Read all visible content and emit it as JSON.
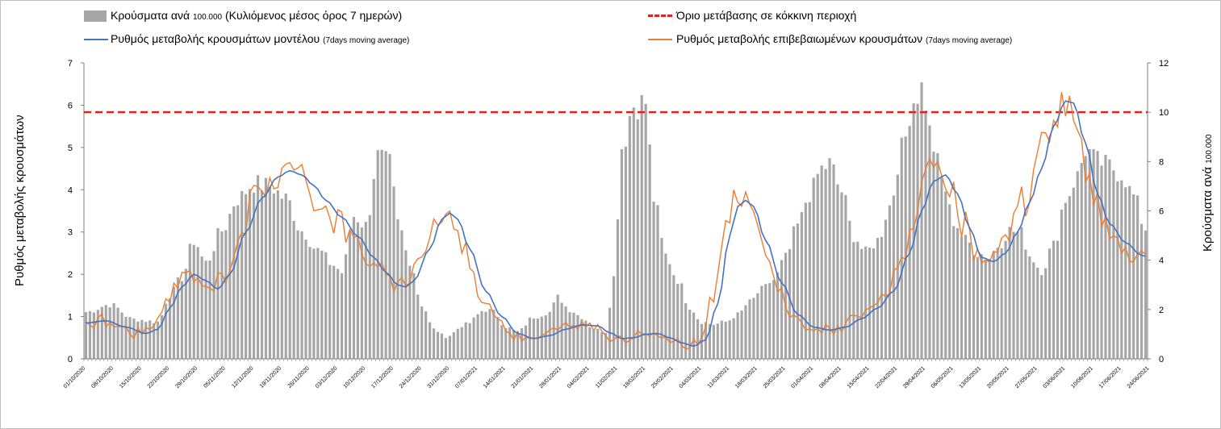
{
  "legend": {
    "bars_label": "Κρούσματα ανά",
    "bars_small": "100.000",
    "bars_label_rest": "(Κυλιόμενος μέσος όρος 7 ημερών)",
    "threshold_label": "Όριο μετάβασης σε κόκκινη περιοχή",
    "model_label": "Ρυθμός μεταβολής κρουσμάτων μοντέλου",
    "model_small": "(7days moving average)",
    "confirmed_label": "Ρυθμός μεταβολής επιβεβαιωμένων κρουσμάτων",
    "confirmed_small": "(7days moving average)"
  },
  "axes": {
    "left_title": "Ρυθμός μεταβολής κρουσμάτων",
    "right_title": "Κρούσματα ανά",
    "right_title_small": "100.000"
  },
  "colors": {
    "bars": "#a6a6a6",
    "threshold": "#e0211d",
    "model": "#4472c4",
    "confirmed": "#ed7d31",
    "axis": "#7f7f7f"
  },
  "chart_data": {
    "type": "bar",
    "title": "",
    "n_days": 266,
    "start_date": "01/10/2020",
    "x_tick_every_days": 7,
    "x_tick_labels": [
      "01/10/2020",
      "08/10/2020",
      "15/10/2020",
      "22/10/2020",
      "29/10/2020",
      "05/11/2020",
      "12/11/2020",
      "19/11/2020",
      "26/11/2020",
      "03/12/2020",
      "10/12/2020",
      "17/12/2020",
      "24/12/2020",
      "31/12/2020",
      "07/01/2021",
      "14/01/2021",
      "21/01/2021",
      "28/01/2021",
      "04/02/2021",
      "11/02/2021",
      "18/02/2021",
      "25/02/2021",
      "04/03/2021",
      "11/03/2021",
      "18/03/2021",
      "25/03/2021",
      "01/04/2021",
      "08/04/2021",
      "15/04/2021",
      "22/04/2021",
      "29/04/2021",
      "06/05/2021",
      "13/05/2021",
      "20/05/2021",
      "27/05/2021",
      "03/06/2021",
      "10/06/2021",
      "17/06/2021",
      "24/06/2021"
    ],
    "ylim_left": [
      0,
      7
    ],
    "yticks_left": [
      0,
      1,
      2,
      3,
      4,
      5,
      6,
      7
    ],
    "ylim_right": [
      0,
      12
    ],
    "yticks_right": [
      0,
      2,
      4,
      6,
      8,
      10,
      12
    ],
    "threshold_value": 10,
    "bars_keypoints": [
      [
        0,
        1.9
      ],
      [
        6,
        2.2
      ],
      [
        12,
        1.6
      ],
      [
        18,
        1.5
      ],
      [
        21,
        2.6
      ],
      [
        24,
        3.3
      ],
      [
        27,
        4.8
      ],
      [
        30,
        3.9
      ],
      [
        34,
        5.2
      ],
      [
        38,
        6.5
      ],
      [
        42,
        7.1
      ],
      [
        46,
        7.0
      ],
      [
        50,
        6.5
      ],
      [
        54,
        5.2
      ],
      [
        58,
        4.4
      ],
      [
        62,
        3.8
      ],
      [
        64,
        3.5
      ],
      [
        67,
        5.8
      ],
      [
        70,
        5.4
      ],
      [
        73,
        8.2
      ],
      [
        76,
        7.9
      ],
      [
        78,
        5.5
      ],
      [
        81,
        4.0
      ],
      [
        84,
        2.2
      ],
      [
        87,
        1.2
      ],
      [
        90,
        0.9
      ],
      [
        95,
        1.4
      ],
      [
        100,
        2.0
      ],
      [
        102,
        1.9
      ],
      [
        105,
        1.3
      ],
      [
        108,
        1.1
      ],
      [
        112,
        1.7
      ],
      [
        116,
        1.9
      ],
      [
        118,
        2.5
      ],
      [
        121,
        2.0
      ],
      [
        124,
        1.7
      ],
      [
        127,
        1.2
      ],
      [
        130,
        1.1
      ],
      [
        132,
        3.3
      ],
      [
        134,
        8.6
      ],
      [
        137,
        10.3
      ],
      [
        140,
        10.4
      ],
      [
        142,
        6.5
      ],
      [
        145,
        4.2
      ],
      [
        148,
        3.2
      ],
      [
        151,
        2.1
      ],
      [
        154,
        1.5
      ],
      [
        157,
        1.4
      ],
      [
        160,
        1.5
      ],
      [
        163,
        1.8
      ],
      [
        166,
        2.3
      ],
      [
        169,
        2.8
      ],
      [
        172,
        3.2
      ],
      [
        175,
        4.1
      ],
      [
        178,
        5.4
      ],
      [
        181,
        6.7
      ],
      [
        184,
        7.7
      ],
      [
        186,
        7.9
      ],
      [
        189,
        6.8
      ],
      [
        192,
        5.0
      ],
      [
        195,
        4.3
      ],
      [
        198,
        4.8
      ],
      [
        201,
        6.2
      ],
      [
        204,
        8.5
      ],
      [
        207,
        10.5
      ],
      [
        209,
        11.0
      ],
      [
        212,
        8.6
      ],
      [
        214,
        7.3
      ],
      [
        217,
        5.6
      ],
      [
        220,
        4.8
      ],
      [
        223,
        4.3
      ],
      [
        226,
        4.1
      ],
      [
        228,
        4.6
      ],
      [
        231,
        5.2
      ],
      [
        234,
        5.1
      ],
      [
        236,
        4.2
      ],
      [
        239,
        3.6
      ],
      [
        242,
        4.6
      ],
      [
        245,
        6.5
      ],
      [
        248,
        7.4
      ],
      [
        250,
        8.5
      ],
      [
        253,
        8.0
      ],
      [
        256,
        7.8
      ],
      [
        259,
        7.5
      ],
      [
        262,
        6.6
      ],
      [
        265,
        5.3
      ],
      [
        266,
        5.3
      ]
    ],
    "model_keypoints": [
      [
        0,
        0.85
      ],
      [
        5,
        0.9
      ],
      [
        10,
        0.75
      ],
      [
        15,
        0.6
      ],
      [
        18,
        0.7
      ],
      [
        21,
        1.2
      ],
      [
        24,
        1.7
      ],
      [
        27,
        2.0
      ],
      [
        30,
        1.85
      ],
      [
        33,
        1.65
      ],
      [
        36,
        2.0
      ],
      [
        40,
        3.0
      ],
      [
        44,
        3.8
      ],
      [
        48,
        4.3
      ],
      [
        51,
        4.45
      ],
      [
        54,
        4.35
      ],
      [
        57,
        4.1
      ],
      [
        60,
        3.75
      ],
      [
        64,
        3.35
      ],
      [
        68,
        2.9
      ],
      [
        72,
        2.4
      ],
      [
        75,
        2.05
      ],
      [
        78,
        1.75
      ],
      [
        80,
        1.7
      ],
      [
        82,
        1.85
      ],
      [
        86,
        2.6
      ],
      [
        89,
        3.3
      ],
      [
        91,
        3.45
      ],
      [
        93,
        3.3
      ],
      [
        96,
        2.6
      ],
      [
        100,
        1.6
      ],
      [
        104,
        1.0
      ],
      [
        108,
        0.6
      ],
      [
        112,
        0.48
      ],
      [
        116,
        0.55
      ],
      [
        120,
        0.7
      ],
      [
        124,
        0.8
      ],
      [
        128,
        0.78
      ],
      [
        131,
        0.62
      ],
      [
        134,
        0.48
      ],
      [
        137,
        0.5
      ],
      [
        140,
        0.58
      ],
      [
        143,
        0.6
      ],
      [
        146,
        0.5
      ],
      [
        149,
        0.38
      ],
      [
        152,
        0.3
      ],
      [
        155,
        0.45
      ],
      [
        158,
        1.3
      ],
      [
        161,
        2.9
      ],
      [
        163,
        3.6
      ],
      [
        165,
        3.75
      ],
      [
        167,
        3.6
      ],
      [
        170,
        2.8
      ],
      [
        174,
        1.8
      ],
      [
        178,
        1.05
      ],
      [
        182,
        0.75
      ],
      [
        186,
        0.68
      ],
      [
        190,
        0.75
      ],
      [
        194,
        0.95
      ],
      [
        198,
        1.2
      ],
      [
        202,
        1.6
      ],
      [
        206,
        2.5
      ],
      [
        209,
        3.5
      ],
      [
        212,
        4.2
      ],
      [
        215,
        4.35
      ],
      [
        218,
        3.9
      ],
      [
        221,
        3.1
      ],
      [
        224,
        2.4
      ],
      [
        227,
        2.3
      ],
      [
        230,
        2.5
      ],
      [
        233,
        3.0
      ],
      [
        236,
        3.7
      ],
      [
        239,
        4.5
      ],
      [
        242,
        5.5
      ],
      [
        245,
        6.1
      ],
      [
        247,
        6.05
      ],
      [
        250,
        5.1
      ],
      [
        253,
        3.9
      ],
      [
        256,
        3.2
      ],
      [
        260,
        2.75
      ],
      [
        264,
        2.45
      ],
      [
        266,
        2.4
      ]
    ]
  }
}
